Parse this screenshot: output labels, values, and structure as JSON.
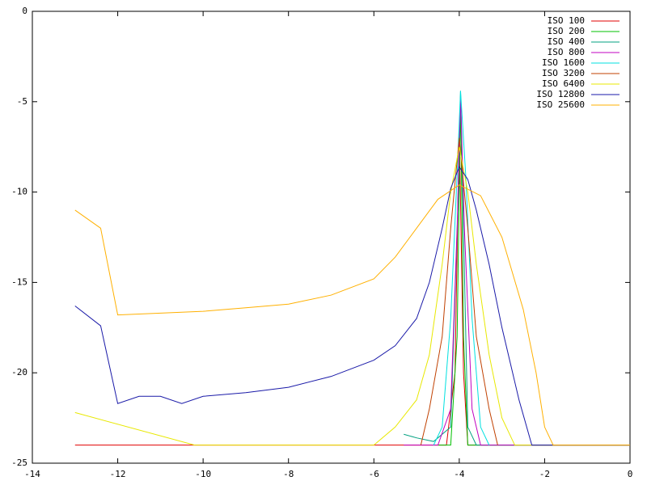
{
  "chart_data": {
    "type": "line",
    "xlim": [
      -14,
      0
    ],
    "xticks": [
      -14,
      -12,
      -10,
      -8,
      -6,
      -4,
      -2,
      0
    ],
    "ylim": [
      -25,
      0
    ],
    "yticks": [
      -25,
      -20,
      -15,
      -10,
      -5,
      0
    ],
    "grid": false,
    "legend": "top right",
    "series": [
      {
        "name": "ISO 100",
        "color": "#e00000",
        "x": [
          -13,
          -10.2,
          -4.3,
          -4.1,
          -4.0,
          -3.9,
          -3.8,
          0
        ],
        "values": [
          -24,
          -24,
          -24,
          -20,
          -6.5,
          -20,
          -24,
          -24
        ]
      },
      {
        "name": "ISO 200",
        "color": "#00c000",
        "x": [
          -4.5,
          -4.2,
          -4.05,
          -3.97,
          -3.9,
          -3.8,
          0
        ],
        "values": [
          -24,
          -24,
          -18,
          -5,
          -18,
          -24,
          -24
        ]
      },
      {
        "name": "ISO 400",
        "color": "#00a080",
        "x": [
          -5.3,
          -5,
          -4.6,
          -4.2,
          -4.02,
          -3.97,
          -3.92,
          -3.8,
          -3.6,
          0
        ],
        "values": [
          -23.4,
          -23.6,
          -23.8,
          -23,
          -10,
          -4.4,
          -10,
          -23,
          -24,
          -24
        ]
      },
      {
        "name": "ISO 800",
        "color": "#c000c0",
        "x": [
          -5.3,
          -4.5,
          -4.2,
          -4.05,
          -3.97,
          -3.88,
          -3.7,
          -3.5,
          0
        ],
        "values": [
          -24,
          -24,
          -22,
          -12,
          -4.7,
          -12,
          -22,
          -24,
          -24
        ]
      },
      {
        "name": "ISO 1600",
        "color": "#00e0e0",
        "x": [
          -4.6,
          -4.4,
          -4.2,
          -4.05,
          -3.97,
          -3.85,
          -3.7,
          -3.5,
          -3.3
        ],
        "values": [
          -24,
          -23,
          -17,
          -9,
          -4.4,
          -9,
          -17,
          -23,
          -24
        ]
      },
      {
        "name": "ISO 3200",
        "color": "#c04000",
        "x": [
          -4.9,
          -4.7,
          -4.4,
          -4.2,
          -4.0,
          -3.8,
          -3.6,
          -3.3,
          -3.1
        ],
        "values": [
          -24,
          -22,
          -18,
          -12,
          -7,
          -12,
          -18,
          -22,
          -24
        ]
      },
      {
        "name": "ISO 6400",
        "color": "#e8e800",
        "x": [
          -13,
          -10.2,
          -6,
          -5.5,
          -5,
          -4.7,
          -4.4,
          -4.2,
          -4.0,
          -3.8,
          -3.6,
          -3.3,
          -3.0,
          -2.7,
          0
        ],
        "values": [
          -22.2,
          -24,
          -24,
          -23,
          -21.5,
          -19,
          -14,
          -10,
          -7.5,
          -10,
          -14,
          -19,
          -22.5,
          -24,
          -24
        ]
      },
      {
        "name": "ISO 12800",
        "color": "#1a1aa8",
        "x": [
          -13,
          -12.4,
          -12,
          -11.5,
          -11,
          -10.5,
          -10,
          -9,
          -8,
          -7,
          -6,
          -5.5,
          -5,
          -4.7,
          -4.4,
          -4.2,
          -4.0,
          -3.8,
          -3.6,
          -3.3,
          -3.0,
          -2.6,
          -2.3,
          0
        ],
        "values": [
          -16.3,
          -17.4,
          -21.7,
          -21.3,
          -21.3,
          -21.7,
          -21.3,
          -21.1,
          -20.8,
          -20.2,
          -19.3,
          -18.5,
          -17,
          -15,
          -12,
          -9.8,
          -8.6,
          -9.3,
          -11,
          -14,
          -17.5,
          -21.5,
          -24,
          -24
        ]
      },
      {
        "name": "ISO 25600",
        "color": "#ffb000",
        "x": [
          -13,
          -12.4,
          -12,
          -11,
          -10,
          -9,
          -8,
          -7,
          -6,
          -5.5,
          -5,
          -4.5,
          -4,
          -3.5,
          -3,
          -2.5,
          -2.2,
          -2,
          -1.8,
          0
        ],
        "values": [
          -11,
          -12,
          -16.8,
          -16.7,
          -16.6,
          -16.4,
          -16.2,
          -15.7,
          -14.8,
          -13.6,
          -12,
          -10.4,
          -9.6,
          -10.2,
          -12.5,
          -16.5,
          -20,
          -23,
          -24,
          -24
        ]
      }
    ]
  }
}
